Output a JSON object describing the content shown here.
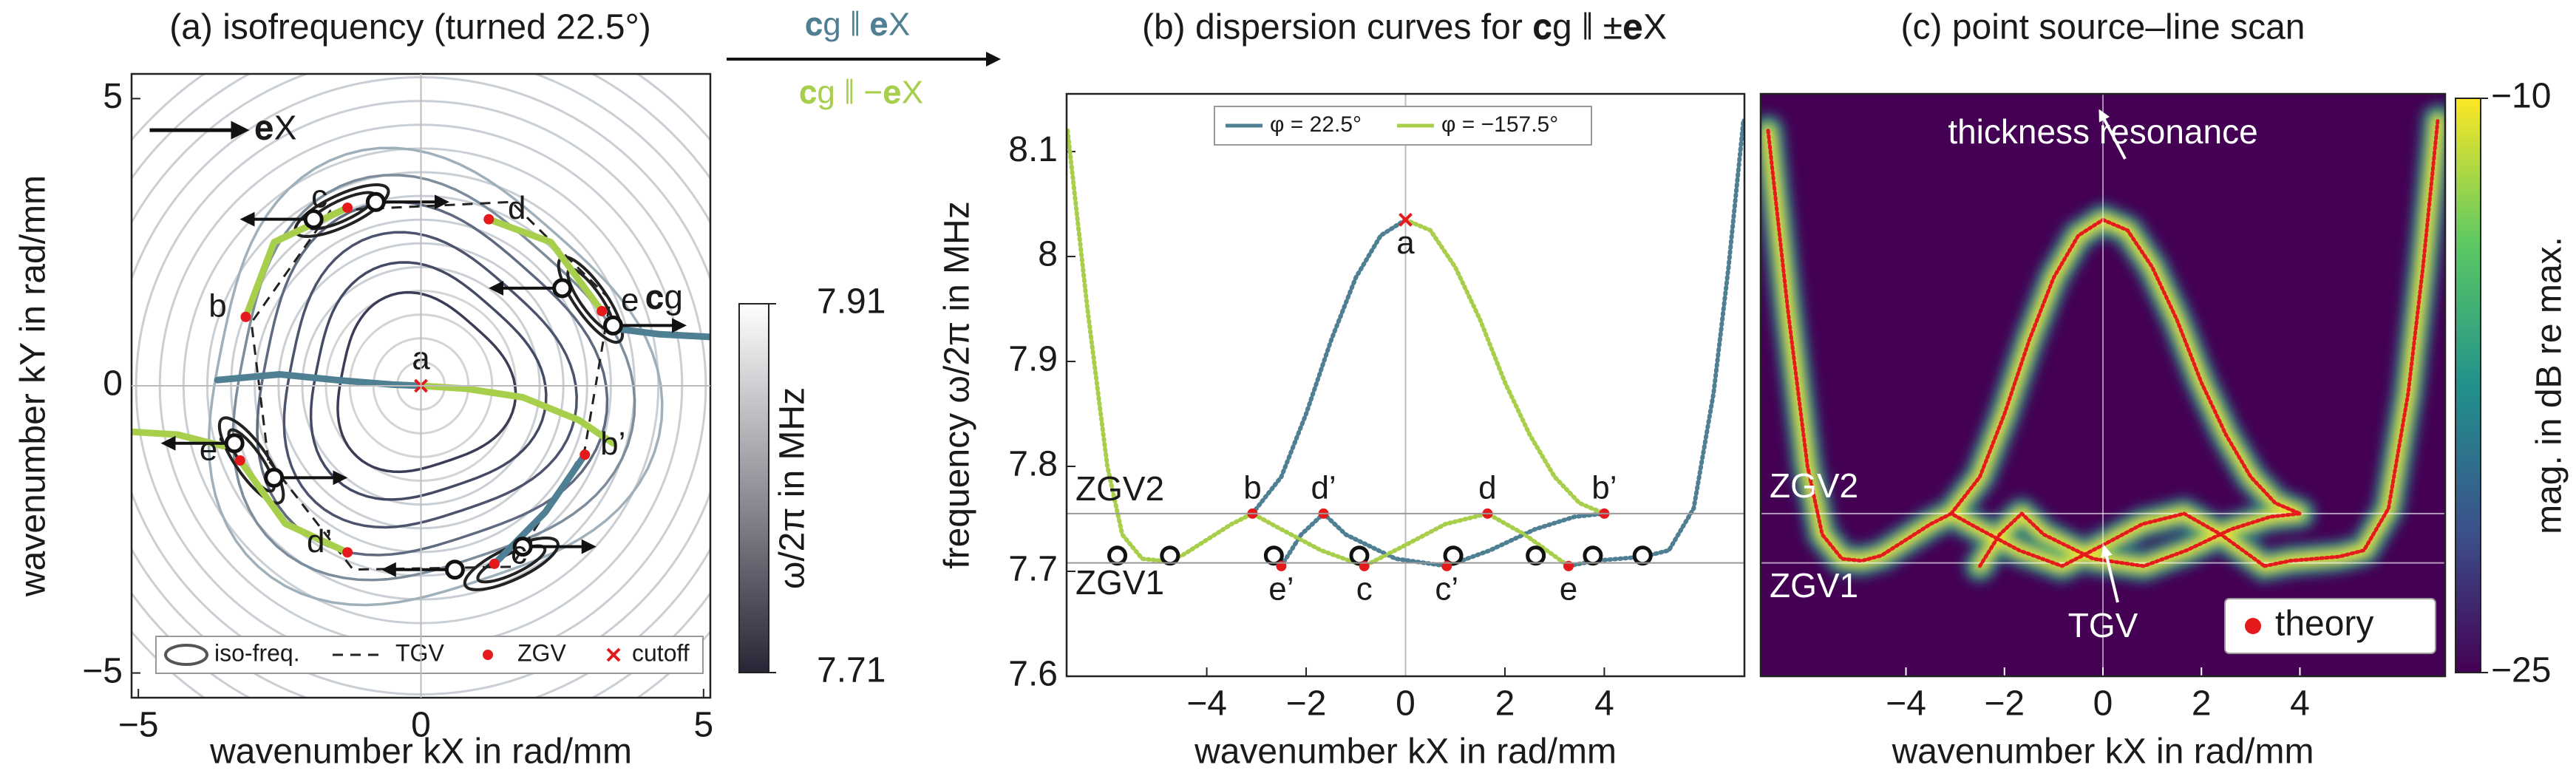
{
  "arrow_labels": {
    "parallel": "𝐜g ∥ 𝐞X",
    "antiparallel": "𝐜g ∥ −𝐞X",
    "colors": [
      "#4f7f93",
      "#a8cf4b"
    ]
  },
  "chart_data": [
    {
      "type": "contour",
      "title": "(a) isofrequency (turned 22.5°)",
      "xlabel": "wavenumber kX in rad/mm",
      "ylabel": "wavenumber kY in rad/mm",
      "xlim": [
        -5.12,
        5.12
      ],
      "ylim": [
        -5.43,
        5.43
      ],
      "xticks": [
        {
          "value": -5,
          "label": "−5"
        },
        0,
        5
      ],
      "yticks": [
        {
          "value": -5,
          "label": "−5"
        },
        0,
        5
      ],
      "reference_lines": {
        "x": [
          0
        ],
        "y": [
          0
        ]
      },
      "direction_label": "𝐞X",
      "group_velocity_label": "𝐜g",
      "series": [
        {
          "color": "#4f7f93",
          "x": [
            -3.6,
            -2.5,
            -1.5,
            -0.5,
            0,
            null,
            3.4,
            4.2,
            5.12,
            null,
            2.9,
            2.2,
            1.3
          ],
          "values": [
            0.1,
            0.2,
            0.1,
            0.02,
            0,
            null,
            1.0,
            0.9,
            0.85,
            null,
            -1.2,
            -2.2,
            -3.1
          ]
        },
        {
          "color": "#a8cf4b",
          "x": [
            0,
            0.8,
            1.8,
            2.8,
            3.4,
            null,
            -5.12,
            -4.3,
            -3.5,
            null,
            -3.1,
            -2.6,
            -1.3,
            null,
            1.2,
            2.3,
            3.2,
            null,
            -1.3,
            -2.4,
            -3.2
          ],
          "values": [
            0,
            -0.05,
            -0.2,
            -0.6,
            -1.0,
            null,
            -0.8,
            -0.85,
            -1.05,
            null,
            1.2,
            2.5,
            3.1,
            null,
            2.9,
            2.5,
            1.3,
            null,
            -2.9,
            -2.4,
            -1.3
          ]
        }
      ],
      "zgv": {
        "color": "#e41a1c",
        "labels": [
          "b",
          "c",
          "d",
          "e",
          "b’",
          "c’",
          "d’",
          "e’"
        ],
        "x": [
          -3.1,
          -1.3,
          1.2,
          3.2,
          2.9,
          1.3,
          -1.3,
          -3.2
        ],
        "values": [
          1.2,
          3.1,
          2.9,
          1.3,
          -1.2,
          -3.1,
          -2.9,
          -1.3
        ]
      },
      "cutoff": {
        "color": "#e41a1c",
        "label": "a",
        "x": [
          0
        ],
        "values": [
          0
        ]
      },
      "legend": [
        "iso-freq.",
        "TGV",
        "ZGV",
        "cutoff"
      ],
      "colorbar": {
        "label": "ω/2π in MHz",
        "lim": [
          7.71,
          7.91
        ],
        "ticks": [
          7.71,
          7.91
        ],
        "colors": [
          "#262636",
          "#ffffff"
        ]
      }
    },
    {
      "type": "line",
      "title": "(b) dispersion curves for 𝐜g ∥ ±𝐞X",
      "xlabel": "wavenumber kX in rad/mm",
      "ylabel": "frequency ω/2π in MHz",
      "xlim": [
        -6.82,
        6.82
      ],
      "ylim": [
        7.6,
        8.155
      ],
      "xticks": [
        {
          "value": -4,
          "label": "−4"
        },
        {
          "value": -2,
          "label": "−2"
        },
        0,
        2,
        4
      ],
      "yticks": [
        7.6,
        7.7,
        7.8,
        7.9,
        8,
        8.1
      ],
      "reference_lines": {
        "x": [
          0
        ]
      },
      "series": [
        {
          "name": "φ = 22.5°",
          "color": "#4f7f93",
          "x": [
            -3.08,
            -2.5,
            -2,
            -1.5,
            -1,
            -0.5,
            0,
            null,
            -2.5,
            -2.1,
            -1.65,
            -1.2,
            -0.2,
            0.83,
            1.7,
            2.6,
            3.4,
            4.0,
            null,
            3.28,
            3.8,
            4.3,
            4.8,
            5.3,
            5.8,
            6.2,
            6.5,
            6.8
          ],
          "values": [
            7.755,
            7.79,
            7.85,
            7.92,
            7.98,
            8.02,
            8.035,
            null,
            7.705,
            7.735,
            7.755,
            7.735,
            7.712,
            7.705,
            7.72,
            7.74,
            7.752,
            7.755,
            null,
            7.705,
            7.71,
            7.712,
            7.714,
            7.72,
            7.76,
            7.87,
            7.99,
            8.13
          ]
        },
        {
          "name": "φ = −157.5°",
          "color": "#a8cf4b",
          "x": [
            -6.8,
            -6.4,
            -6.0,
            -5.7,
            -5.3,
            -4.9,
            -4.5,
            -4.0,
            -3.5,
            -3.08,
            -2.5,
            -1.7,
            -0.83,
            0,
            0.8,
            1.65,
            2.4,
            3.28,
            null,
            0,
            0.5,
            1,
            1.5,
            2,
            2.5,
            3,
            3.5,
            4.0
          ],
          "values": [
            8.12,
            7.95,
            7.8,
            7.735,
            7.712,
            7.71,
            7.715,
            7.73,
            7.745,
            7.755,
            7.74,
            7.72,
            7.705,
            7.725,
            7.745,
            7.755,
            7.735,
            7.705,
            null,
            8.035,
            8.025,
            7.99,
            7.94,
            7.88,
            7.83,
            7.79,
            7.765,
            7.755
          ]
        }
      ],
      "zgv": {
        "color": "#e41a1c",
        "labels": [
          "b",
          "d’",
          "d",
          "b’",
          "e’",
          "c",
          "c’",
          "e"
        ],
        "x": [
          -3.08,
          -1.65,
          1.65,
          4.0,
          -2.5,
          -0.83,
          0.83,
          3.28
        ],
        "values": [
          7.755,
          7.755,
          7.755,
          7.755,
          7.705,
          7.705,
          7.705,
          7.705
        ]
      },
      "cutoff": {
        "color": "#e41a1c",
        "label": "a",
        "x": [
          0
        ],
        "values": [
          8.035
        ]
      },
      "tgv": {
        "x": [
          -5.8,
          -4.74,
          -2.65,
          -0.93,
          0.96,
          2.62,
          3.77,
          4.77
        ],
        "values": [
          7.715,
          7.715,
          7.715,
          7.715,
          7.715,
          7.715,
          7.715,
          7.715
        ]
      },
      "zgv_lines": {
        "labels": [
          "ZGV2",
          "ZGV1"
        ],
        "values": [
          7.755,
          7.708
        ]
      }
    },
    {
      "type": "heatmap",
      "title": "(c) point source–line scan",
      "xlabel": "wavenumber kX in rad/mm",
      "xlim": [
        -6.95,
        6.95
      ],
      "ylim": [
        7.6,
        8.155
      ],
      "xticks": [
        {
          "value": -4,
          "label": "−4"
        },
        {
          "value": -2,
          "label": "−2"
        },
        0,
        2,
        4
      ],
      "reference_lines": {
        "x": [
          0
        ]
      },
      "background": "#440154",
      "series": [
        {
          "name": "theory",
          "color": "#e41a1c",
          "x": [
            -3.08,
            -2.5,
            -2,
            -1.5,
            -1,
            -0.5,
            0,
            null,
            -2.5,
            -2.1,
            -1.65,
            -1.2,
            -0.2,
            0.83,
            1.7,
            2.6,
            3.4,
            4.0,
            null,
            3.28,
            3.8,
            4.3,
            4.8,
            5.3,
            5.8,
            6.2,
            6.5,
            6.8,
            null,
            -6.8,
            -6.4,
            -6.0,
            -5.7,
            -5.3,
            -4.9,
            -4.5,
            -4.0,
            -3.5,
            -3.08,
            -2.5,
            -1.7,
            -0.83,
            0,
            0.8,
            1.65,
            2.4,
            3.28,
            null,
            0,
            0.5,
            1,
            1.5,
            2,
            2.5,
            3,
            3.5,
            4.0
          ],
          "values": [
            7.755,
            7.79,
            7.85,
            7.92,
            7.98,
            8.02,
            8.035,
            null,
            7.705,
            7.735,
            7.755,
            7.735,
            7.712,
            7.705,
            7.72,
            7.74,
            7.752,
            7.755,
            null,
            7.705,
            7.71,
            7.712,
            7.714,
            7.72,
            7.76,
            7.87,
            7.99,
            8.13,
            null,
            8.12,
            7.95,
            7.8,
            7.735,
            7.712,
            7.71,
            7.715,
            7.73,
            7.745,
            7.755,
            7.74,
            7.72,
            7.705,
            7.725,
            7.745,
            7.755,
            7.735,
            7.705,
            null,
            8.035,
            8.025,
            7.99,
            7.94,
            7.88,
            7.83,
            7.79,
            7.765,
            7.755
          ]
        }
      ],
      "zgv_lines": {
        "labels": [
          "ZGV2",
          "ZGV1"
        ],
        "values": [
          7.755,
          7.708
        ]
      },
      "annotations": {
        "resonance": "thickness resonance",
        "tgv": "TGV"
      },
      "colorbar": {
        "label": "mag. in dB re max.",
        "lim": [
          -25,
          -10
        ],
        "ticks": [
          {
            "value": -10,
            "label": "−10"
          },
          {
            "value": -25,
            "label": "−25"
          }
        ],
        "colors": [
          "#440154",
          "#3b528b",
          "#21918c",
          "#5ec962",
          "#fde725"
        ]
      }
    }
  ]
}
